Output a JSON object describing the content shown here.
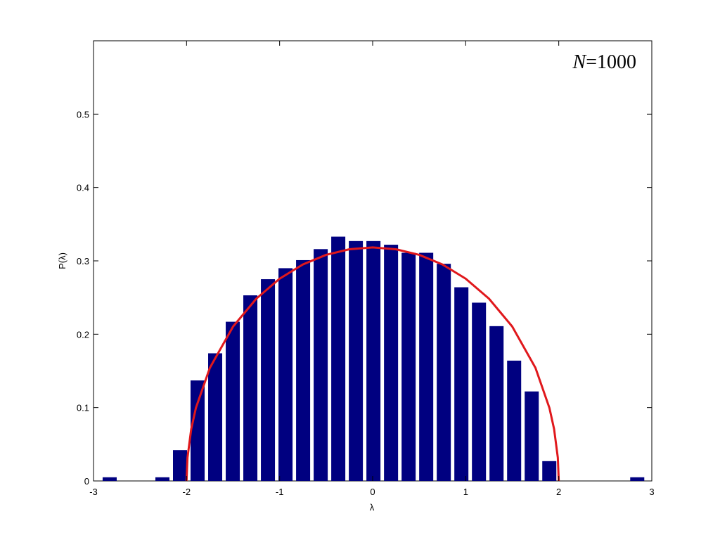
{
  "chart_data": {
    "type": "histogram",
    "bins": [
      -2.921,
      -2.732,
      -2.543,
      -2.354,
      -2.165,
      -1.976,
      -1.787,
      -1.598,
      -1.409,
      -1.22,
      -1.031,
      -0.842,
      -0.653,
      -0.464,
      -0.275,
      -0.086,
      0.103,
      0.292,
      0.481,
      0.67,
      0.859,
      1.048,
      1.237,
      1.426,
      1.615,
      1.804,
      1.993,
      2.182,
      2.371,
      2.56,
      2.749,
      2.938
    ],
    "values": [
      0.005,
      0,
      0,
      0.005,
      0.042,
      0.137,
      0.174,
      0.217,
      0.253,
      0.275,
      0.29,
      0.301,
      0.316,
      0.333,
      0.327,
      0.327,
      0.322,
      0.311,
      0.311,
      0.296,
      0.264,
      0.243,
      0.211,
      0.164,
      0.122,
      0.027,
      0,
      0,
      0,
      0,
      0.005
    ],
    "color": "#000080",
    "curve": {
      "x": [
        -2,
        -1.99,
        -1.95,
        -1.9,
        -1.75,
        -1.5,
        -1.25,
        -1,
        -0.75,
        -0.5,
        -0.25,
        0,
        0.25,
        0.5,
        0.75,
        1,
        1.25,
        1.5,
        1.75,
        1.9,
        1.95,
        1.99,
        2
      ],
      "values": [
        0,
        0.0318,
        0.0707,
        0.0994,
        0.1541,
        0.2105,
        0.2485,
        0.2757,
        0.2951,
        0.3082,
        0.3158,
        0.3183,
        0.3158,
        0.3082,
        0.2951,
        0.2757,
        0.2485,
        0.2105,
        0.1541,
        0.0994,
        0.0707,
        0.0318,
        0
      ],
      "color": "#e0181c"
    },
    "xlim": [
      -3,
      3
    ],
    "ylim": [
      0,
      0.6
    ],
    "xticks": [
      -3,
      -2,
      -1,
      0,
      1,
      2,
      3
    ],
    "yticks": [
      0,
      0.1,
      0.2,
      0.3,
      0.4,
      0.5
    ],
    "xlabel": "λ",
    "ylabel": "P(λ)",
    "annotation": "N=1000"
  }
}
